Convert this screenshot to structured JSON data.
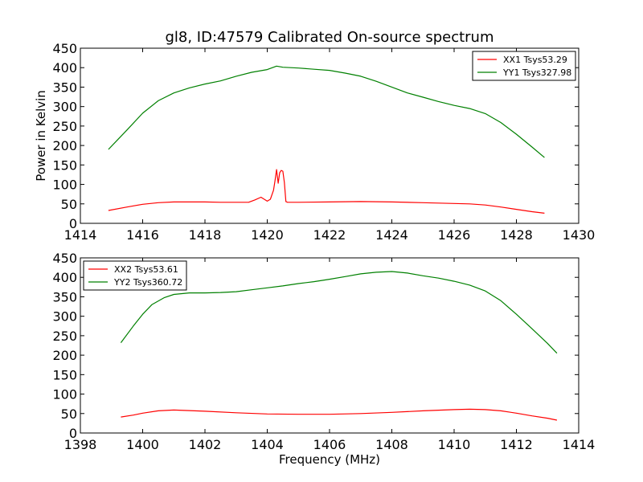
{
  "title": "gl8, ID:47579 Calibrated On-source spectrum",
  "ylabel": "Power in Kelvin",
  "xlabel": "Frequency (MHz)",
  "colors": {
    "xx": "#ff0000",
    "yy": "#008000"
  },
  "chart_data": [
    {
      "type": "line",
      "xlim": [
        1414,
        1430
      ],
      "ylim": [
        0,
        450
      ],
      "xticks": [
        "1414",
        "1416",
        "1418",
        "1420",
        "1422",
        "1424",
        "1426",
        "1428",
        "1430"
      ],
      "yticks": [
        "0",
        "50",
        "100",
        "150",
        "200",
        "250",
        "300",
        "350",
        "400",
        "450"
      ],
      "legend": "top-right",
      "series": [
        {
          "name": "XX1 Tsys53.29",
          "color": "#ff0000",
          "x": [
            1414.9,
            1415.5,
            1416,
            1416.5,
            1417,
            1417.5,
            1418,
            1418.5,
            1419,
            1419.4,
            1419.6,
            1419.8,
            1420.0,
            1420.1,
            1420.2,
            1420.25,
            1420.3,
            1420.35,
            1420.4,
            1420.45,
            1420.5,
            1420.55,
            1420.6,
            1420.65,
            1420.7,
            1421,
            1422,
            1423,
            1424,
            1425,
            1426,
            1426.5,
            1427,
            1427.5,
            1428,
            1428.5,
            1428.9
          ],
          "y": [
            33,
            42,
            49,
            53,
            55,
            55,
            55,
            54,
            54,
            54,
            60,
            67,
            57,
            62,
            85,
            110,
            138,
            103,
            130,
            136,
            134,
            105,
            56,
            54,
            54,
            54,
            55,
            56,
            55,
            53,
            51,
            50,
            47,
            42,
            36,
            30,
            26
          ]
        },
        {
          "name": "YY1 Tsys327.98",
          "color": "#008000",
          "x": [
            1414.9,
            1415.2,
            1415.5,
            1416,
            1416.5,
            1417,
            1417.5,
            1418,
            1418.5,
            1419,
            1419.5,
            1420,
            1420.3,
            1420.5,
            1421,
            1421.5,
            1422,
            1422.5,
            1423,
            1423.5,
            1424,
            1424.5,
            1425,
            1425.5,
            1426,
            1426.5,
            1427,
            1427.5,
            1428,
            1428.5,
            1428.9
          ],
          "y": [
            190,
            215,
            240,
            283,
            315,
            335,
            348,
            358,
            366,
            378,
            388,
            395,
            404,
            401,
            399,
            396,
            393,
            386,
            378,
            365,
            350,
            335,
            324,
            313,
            303,
            295,
            282,
            259,
            229,
            196,
            169
          ]
        }
      ]
    },
    {
      "type": "line",
      "xlim": [
        1398,
        1414
      ],
      "ylim": [
        0,
        450
      ],
      "xticks": [
        "1398",
        "1400",
        "1402",
        "1404",
        "1406",
        "1408",
        "1410",
        "1412",
        "1414"
      ],
      "yticks": [
        "0",
        "50",
        "100",
        "150",
        "200",
        "250",
        "300",
        "350",
        "400",
        "450"
      ],
      "legend": "top-left",
      "series": [
        {
          "name": "XX2 Tsys53.61",
          "color": "#ff0000",
          "x": [
            1399.3,
            1399.7,
            1400,
            1400.5,
            1401,
            1402,
            1403,
            1404,
            1405,
            1406,
            1407,
            1408,
            1409,
            1410,
            1410.5,
            1411,
            1411.5,
            1412,
            1412.5,
            1413,
            1413.3
          ],
          "y": [
            41,
            46,
            51,
            57,
            59,
            56,
            52,
            49,
            48,
            48,
            50,
            53,
            57,
            60,
            61,
            60,
            57,
            51,
            44,
            38,
            33
          ]
        },
        {
          "name": "YY2 Tsys360.72",
          "color": "#008000",
          "x": [
            1399.3,
            1399.7,
            1400,
            1400.3,
            1400.7,
            1401,
            1401.5,
            1402,
            1402.5,
            1403,
            1403.5,
            1404,
            1404.5,
            1405,
            1405.5,
            1406,
            1406.5,
            1407,
            1407.5,
            1408,
            1408.5,
            1409,
            1409.5,
            1410,
            1410.5,
            1411,
            1411.5,
            1412,
            1412.5,
            1413,
            1413.3
          ],
          "y": [
            232,
            275,
            305,
            330,
            348,
            356,
            360,
            360,
            361,
            363,
            368,
            373,
            378,
            384,
            389,
            395,
            402,
            409,
            413,
            415,
            411,
            404,
            398,
            390,
            380,
            365,
            340,
            305,
            268,
            230,
            205
          ]
        }
      ]
    }
  ]
}
